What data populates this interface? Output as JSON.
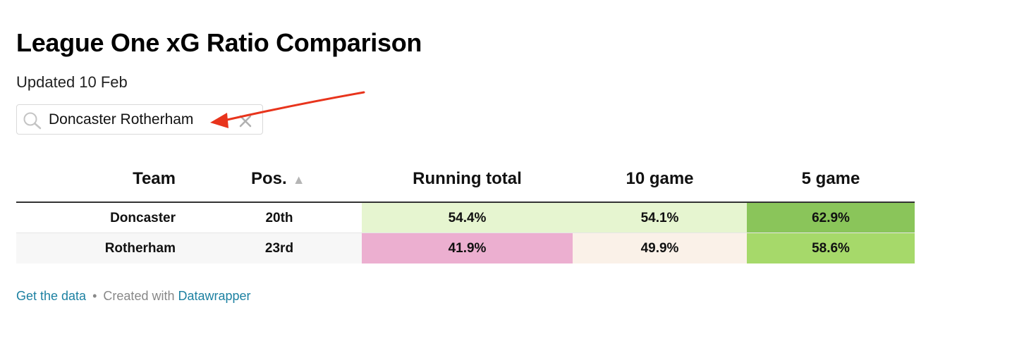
{
  "header": {
    "title": "League One xG Ratio Comparison",
    "subtitle": "Updated 10 Feb"
  },
  "search": {
    "value": "Doncaster Rotherham",
    "icon": "search-icon",
    "clear_icon": "close-icon"
  },
  "table": {
    "columns": {
      "team": "Team",
      "pos": "Pos.",
      "pos_sort_icon": "▲",
      "running": "Running total",
      "ten": "10 game",
      "five": "5 game"
    },
    "rows": [
      {
        "team": "Doncaster",
        "pos": "20th",
        "running": "54.4%",
        "ten": "54.1%",
        "five": "62.9%",
        "colors": {
          "running": "#e6f5d0",
          "ten": "#e6f5d0",
          "five": "#8ac55a"
        }
      },
      {
        "team": "Rotherham",
        "pos": "23rd",
        "running": "41.9%",
        "ten": "49.9%",
        "five": "58.6%",
        "colors": {
          "running": "#ecafd0",
          "ten": "#faf1e8",
          "five": "#a6d96a"
        }
      }
    ]
  },
  "footer": {
    "get_data": "Get the data",
    "separator": "•",
    "created_with": "Created with",
    "tool": "Datawrapper"
  },
  "annotation": {
    "arrow_color": "#e8341c"
  }
}
